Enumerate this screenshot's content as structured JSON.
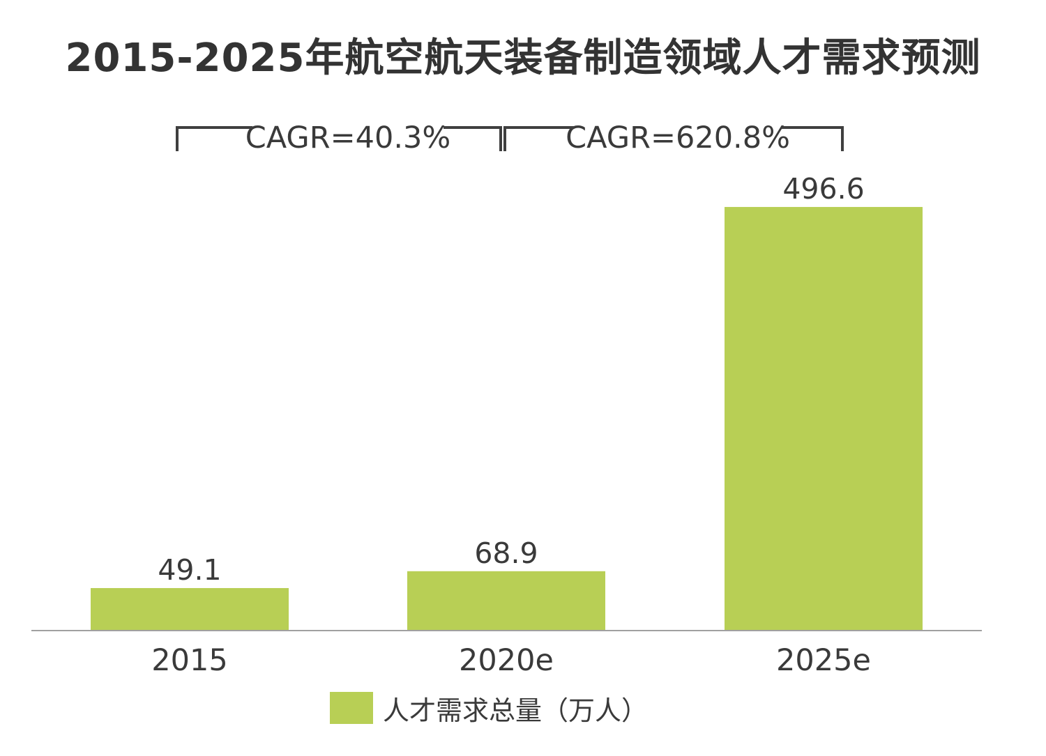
{
  "chart_data": {
    "type": "bar",
    "title": "2015-2025年航空航天装备制造领域人才需求预测",
    "categories": [
      "2015",
      "2020e",
      "2025e"
    ],
    "series": [
      {
        "name": "人才需求总量（万人）",
        "values": [
          49.1,
          68.9,
          496.6
        ],
        "color": "#b8cf55"
      }
    ],
    "data_labels": [
      "49.1",
      "68.9",
      "496.6"
    ],
    "annotations": [
      {
        "text": "CAGR=40.3%",
        "from": "2015",
        "to": "2020e"
      },
      {
        "text": "CAGR=620.8%",
        "from": "2020e",
        "to": "2025e"
      }
    ],
    "xlabel": "",
    "ylabel": "",
    "ylim": [
      0,
      540
    ],
    "y_axis_visible": false,
    "grid": false,
    "legend_position": "bottom-center",
    "colors": {
      "bar": "#b8cf55",
      "axis": "#a0a0a0",
      "text": "#3a3a3a",
      "title": "#333333"
    }
  }
}
